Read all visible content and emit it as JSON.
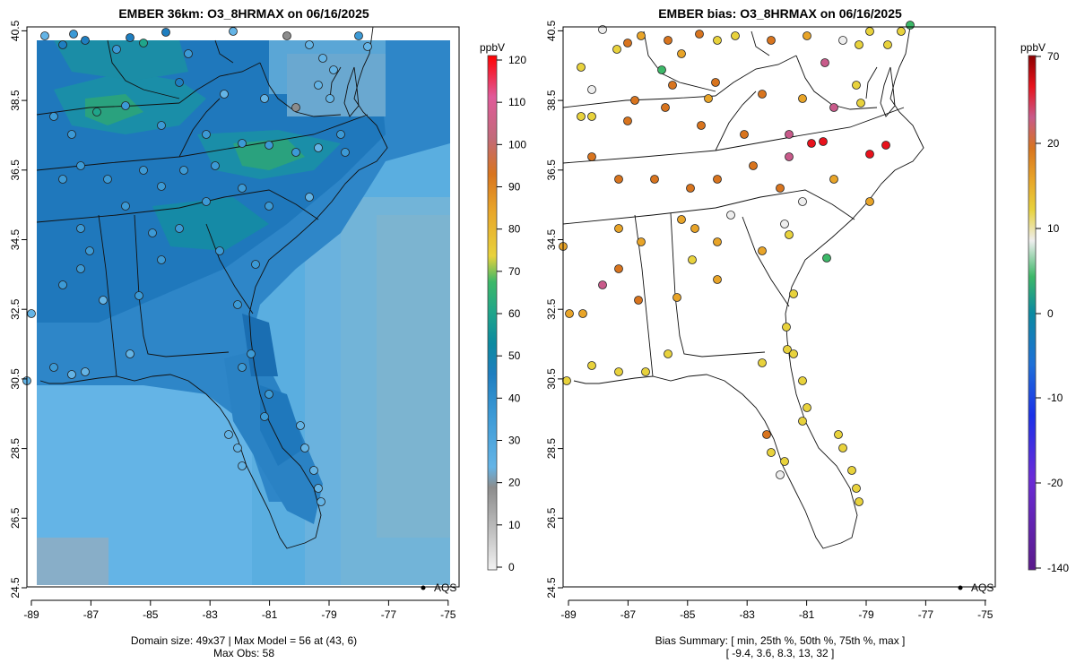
{
  "left_panel": {
    "title": "EMBER 36km: O3_8HRMAX on 06/16/2025",
    "legend_label": "AQS",
    "footer_line1": "Domain size: 49x37 | Max Model = 56 at (43, 6)",
    "footer_line2": "Max Obs: 58",
    "colorbar": {
      "unit": "ppbV",
      "ticks": [
        "0",
        "10",
        "20",
        "30",
        "40",
        "50",
        "60",
        "70",
        "80",
        "90",
        "100",
        "110",
        "120"
      ],
      "colors": [
        "#f2f2f2",
        "#bfbfbf",
        "#8c8c8c",
        "#64b4e6",
        "#3c9ad6",
        "#1e7ec0",
        "#0b8aa0",
        "#1fa58a",
        "#3cb868",
        "#8ec63e",
        "#e8d23c",
        "#e8a428",
        "#d8741e",
        "#c45a52",
        "#b86888",
        "#d86aa8",
        "#ee3a6a",
        "#ff1010"
      ]
    }
  },
  "right_panel": {
    "title": "EMBER bias: O3_8HRMAX on 06/16/2025",
    "legend_label": "AQS",
    "footer_line1": "Bias Summary: [ min, 25th %, 50th %, 75th %, max ]",
    "footer_line2": "[ -9.4,   3.6,   8.3,   13,   32 ]",
    "colorbar": {
      "unit": "ppbV",
      "ticks": [
        "70",
        "20",
        "10",
        "0",
        "-10",
        "-20",
        "-140"
      ],
      "colors": [
        "#8b0000",
        "#e8121c",
        "#c85a8a",
        "#d8741e",
        "#e8a428",
        "#e8d23c",
        "#eeeeee",
        "#3cb868",
        "#0b8aa0",
        "#1e70d8",
        "#1a30e8",
        "#6a2bd8",
        "#5a1a8a"
      ]
    }
  },
  "map_axes": {
    "x_ticks": [
      "-89",
      "-87",
      "-85",
      "-83",
      "-81",
      "-79",
      "-77",
      "-75"
    ],
    "y_ticks": [
      "24.5",
      "26.5",
      "28.5",
      "30.5",
      "32.5",
      "34.5",
      "36.5",
      "38.5",
      "40.5"
    ]
  }
}
